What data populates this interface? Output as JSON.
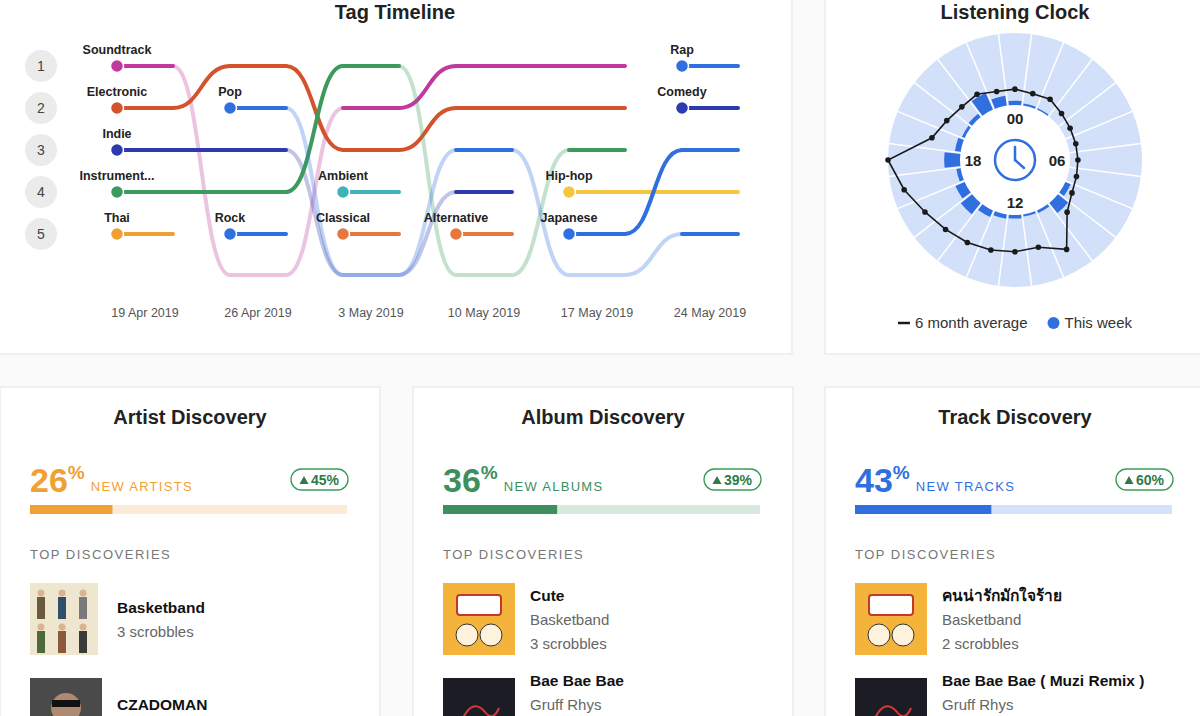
{
  "chart_data": [
    {
      "type": "bump",
      "title": "Tag Timeline",
      "categories": [
        "19 Apr 2019",
        "26 Apr 2019",
        "3 May 2019",
        "10 May 2019",
        "17 May 2019",
        "24 May 2019"
      ],
      "ylim": [
        1,
        5
      ],
      "yticks": [
        1,
        2,
        3,
        4,
        5
      ],
      "series": [
        {
          "name": "Soundtrack",
          "color": "#c2399e",
          "values": [
            1,
            null,
            2,
            1,
            1,
            null
          ]
        },
        {
          "name": "Electronic",
          "color": "#d4532c",
          "values": [
            2,
            1,
            3,
            2,
            2,
            null
          ]
        },
        {
          "name": "Indie",
          "color": "#2e3bb0",
          "values": [
            3,
            3,
            null,
            4,
            null,
            null
          ]
        },
        {
          "name": "Instrument...",
          "color": "#3b9a5c",
          "values": [
            4,
            4,
            1,
            null,
            3,
            null
          ]
        },
        {
          "name": "Thai",
          "color": "#f0a033",
          "values": [
            5,
            null,
            null,
            null,
            null,
            null
          ]
        },
        {
          "name": "Pop",
          "color": "#2f6fe0",
          "values": [
            null,
            2,
            null,
            3,
            null,
            5
          ]
        },
        {
          "name": "Rock",
          "color": "#2f6fe0",
          "values": [
            null,
            5,
            null,
            null,
            null,
            null
          ]
        },
        {
          "name": "Ambient",
          "color": "#3fb3b8",
          "values": [
            null,
            null,
            4,
            null,
            null,
            null
          ]
        },
        {
          "name": "Classical",
          "color": "#e8763d",
          "values": [
            null,
            null,
            5,
            null,
            null,
            null
          ]
        },
        {
          "name": "Alternative",
          "color": "#e8763d",
          "values": [
            null,
            null,
            null,
            5,
            null,
            null
          ]
        },
        {
          "name": "Hip-hop",
          "color": "#f5c542",
          "values": [
            null,
            null,
            null,
            null,
            4,
            4
          ]
        },
        {
          "name": "Japanese",
          "color": "#2f6fe0",
          "values": [
            null,
            null,
            null,
            null,
            5,
            3
          ]
        },
        {
          "name": "Rap",
          "color": "#2f6fe0",
          "values": [
            null,
            null,
            null,
            null,
            null,
            1
          ]
        },
        {
          "name": "Comedy",
          "color": "#2e3bb0",
          "values": [
            null,
            null,
            null,
            null,
            null,
            2
          ]
        }
      ]
    },
    {
      "type": "radial",
      "title": "Listening Clock",
      "categories": [
        "00",
        null,
        null,
        null,
        null,
        null,
        "06",
        null,
        null,
        null,
        null,
        null,
        "12",
        null,
        null,
        null,
        null,
        null,
        "18",
        null,
        null,
        null,
        null,
        null
      ],
      "ylim": [
        0,
        100
      ],
      "tick_labels": "x",
      "legend": "bottom",
      "series": [
        {
          "name": "6 month average",
          "color": "#1a1a1a",
          "type": "line",
          "marker": "circle",
          "values": [
            22,
            19,
            21,
            15,
            12,
            11,
            11,
            12,
            15,
            26,
            67,
            49,
            51,
            53,
            56,
            60,
            68,
            83,
            100,
            43,
            33,
            28,
            29,
            22
          ]
        },
        {
          "name": "This week",
          "color": "#2f6fe0",
          "type": "bar",
          "values": [
            6,
            3,
            2,
            0,
            0,
            0,
            0,
            0,
            8,
            18,
            4,
            3,
            5,
            6,
            10,
            20,
            14,
            6,
            22,
            8,
            4,
            6,
            25,
            14
          ]
        }
      ]
    }
  ],
  "discovery": [
    {
      "title": "Artist Discovery",
      "percent": 26,
      "unit": "%",
      "label": "NEW ARTISTS",
      "change": 45,
      "color": "#f0a136",
      "heading": "TOP DISCOVERIES",
      "items": [
        {
          "name": "Basketband",
          "scrobbles": "3 scrobbles"
        },
        {
          "name": "CZADOMAN"
        }
      ]
    },
    {
      "title": "Album Discovery",
      "percent": 36,
      "unit": "%",
      "label": "NEW ALBUMS",
      "change": 39,
      "color": "#3d8f5e",
      "heading": "TOP DISCOVERIES",
      "items": [
        {
          "name": "Cute",
          "artist": "Basketband",
          "scrobbles": "3 scrobbles"
        },
        {
          "name": "Bae Bae Bae",
          "artist": "Gruff Rhys"
        }
      ]
    },
    {
      "title": "Track Discovery",
      "percent": 43,
      "unit": "%",
      "label": "NEW TRACKS",
      "change": 60,
      "color": "#2f6fe0",
      "heading": "TOP DISCOVERIES",
      "items": [
        {
          "name": "คนน่ารักมักใจร้าย",
          "artist": "Basketband",
          "scrobbles": "2 scrobbles"
        },
        {
          "name": "Bae Bae Bae ( Muzi Remix )",
          "artist": "Gruff Rhys"
        }
      ]
    }
  ]
}
